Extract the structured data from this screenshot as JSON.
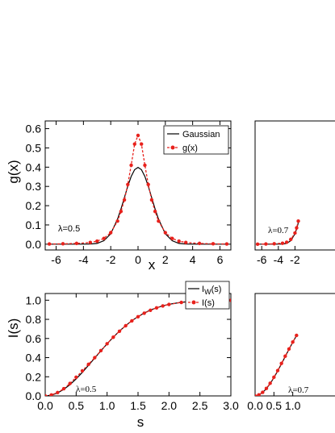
{
  "chart_data": [
    {
      "type": "line",
      "ylabel": "g(x)",
      "xlabel": "x",
      "xlim": [
        -6.8,
        6.8
      ],
      "ylim": [
        -0.03,
        0.64
      ],
      "xticks": [
        -6,
        -4,
        -2,
        0,
        2,
        4,
        6
      ],
      "xtick_labels": [
        "-6",
        "-4",
        "-2",
        "0",
        "2",
        "4",
        "6"
      ],
      "yticks": [
        0.0,
        0.1,
        0.2,
        0.3,
        0.4,
        0.5,
        0.6
      ],
      "ytick_labels": [
        "0.0",
        "0.1",
        "0.2",
        "0.3",
        "0.4",
        "0.5",
        "0.6"
      ],
      "annotation": "λ=0.5",
      "legend": "top-right",
      "series": [
        {
          "name": "Gaussian",
          "color": "#000000",
          "style": "solid",
          "x": [
            -6.5,
            -5.5,
            -4.5,
            -3.5,
            -3,
            -2.5,
            -2,
            -1.5,
            -1.25,
            -1,
            -0.75,
            -0.5,
            -0.25,
            0,
            0.25,
            0.5,
            0.75,
            1,
            1.25,
            1.5,
            2,
            2.5,
            3,
            3.5,
            4.5,
            5.5,
            6.5
          ],
          "y": [
            0,
            0,
            0,
            0.001,
            0.004,
            0.018,
            0.054,
            0.13,
            0.183,
            0.242,
            0.301,
            0.352,
            0.387,
            0.399,
            0.387,
            0.352,
            0.301,
            0.242,
            0.183,
            0.13,
            0.054,
            0.018,
            0.004,
            0.001,
            0,
            0,
            0
          ]
        },
        {
          "name": "g(x)",
          "color": "#e8211c",
          "style": "dashed-dot-marker",
          "x": [
            -6.5,
            -5.5,
            -4.5,
            -3.5,
            -3,
            -2.5,
            -2,
            -1.5,
            -1.25,
            -1,
            -0.75,
            -0.5,
            -0.25,
            0,
            0.25,
            0.5,
            0.75,
            1,
            1.25,
            1.5,
            2,
            2.5,
            3,
            3.5,
            4.5,
            5.5,
            6.5
          ],
          "y": [
            0.001,
            0.002,
            0.004,
            0.009,
            0.016,
            0.03,
            0.06,
            0.12,
            0.17,
            0.23,
            0.31,
            0.41,
            0.52,
            0.565,
            0.52,
            0.41,
            0.31,
            0.23,
            0.17,
            0.12,
            0.06,
            0.03,
            0.016,
            0.009,
            0.004,
            0.002,
            0.001
          ]
        }
      ]
    },
    {
      "type": "line",
      "ylabel": "I(s)",
      "xlabel": "s",
      "xlim": [
        0.0,
        3.0
      ],
      "ylim": [
        0.0,
        1.07
      ],
      "xticks": [
        0.0,
        0.5,
        1.0,
        1.5,
        2.0,
        2.5,
        3.0
      ],
      "xtick_labels": [
        "0.0",
        "0.5",
        "1.0",
        "1.5",
        "2.0",
        "2.5",
        "3.0"
      ],
      "yticks": [
        0.0,
        0.2,
        0.4,
        0.6,
        0.8,
        1.0
      ],
      "ytick_labels": [
        "0.0",
        "0.2",
        "0.4",
        "0.6",
        "0.8",
        "1.0"
      ],
      "annotation": "λ=0.5",
      "legend": "top-right",
      "series": [
        {
          "name": "I_W(s)",
          "color": "#000000",
          "style": "solid",
          "x": [
            0,
            0.1,
            0.2,
            0.3,
            0.4,
            0.5,
            0.6,
            0.7,
            0.8,
            0.9,
            1.0,
            1.1,
            1.2,
            1.3,
            1.4,
            1.5,
            1.6,
            1.7,
            1.8,
            1.9,
            2.0,
            2.2,
            2.4,
            2.6,
            2.8,
            3.0
          ],
          "y": [
            0,
            0.008,
            0.031,
            0.068,
            0.118,
            0.178,
            0.246,
            0.32,
            0.395,
            0.471,
            0.544,
            0.613,
            0.677,
            0.735,
            0.786,
            0.829,
            0.866,
            0.897,
            0.921,
            0.941,
            0.957,
            0.978,
            0.989,
            0.995,
            0.998,
            0.999
          ]
        },
        {
          "name": "I(s)",
          "color": "#e8211c",
          "style": "dashed-dot-marker",
          "x": [
            0,
            0.1,
            0.2,
            0.3,
            0.4,
            0.5,
            0.6,
            0.7,
            0.8,
            0.9,
            1.0,
            1.1,
            1.2,
            1.3,
            1.4,
            1.5,
            1.6,
            1.7,
            1.8,
            1.9,
            2.0,
            2.2,
            2.4,
            2.6,
            2.8,
            3.0
          ],
          "y": [
            0,
            0.01,
            0.035,
            0.075,
            0.13,
            0.195,
            0.262,
            0.33,
            0.4,
            0.473,
            0.545,
            0.613,
            0.676,
            0.733,
            0.784,
            0.827,
            0.864,
            0.895,
            0.92,
            0.94,
            0.956,
            0.977,
            0.988,
            0.994,
            0.997,
            0.999
          ]
        }
      ]
    },
    {
      "type": "line",
      "xlim": [
        -6.8,
        6.8
      ],
      "ylim": [
        -0.03,
        0.64
      ],
      "xticks": [
        -6,
        -4,
        -2
      ],
      "xtick_labels": [
        "-6",
        "-4",
        "-2"
      ],
      "annotation": "λ=0.7",
      "series": [
        {
          "name": "",
          "color": "#000000",
          "style": "solid",
          "x": [
            -6.5,
            -5.5,
            -4.5,
            -3.5,
            -3,
            -2.5,
            -2,
            -1.8,
            -1.6
          ],
          "y": [
            0,
            0,
            0,
            0.001,
            0.004,
            0.018,
            0.054,
            0.079,
            0.111
          ]
        },
        {
          "name": "",
          "color": "#e8211c",
          "style": "dashed-dot-marker",
          "x": [
            -6.5,
            -5.5,
            -4.5,
            -3.5,
            -3,
            -2.5,
            -2,
            -1.8,
            -1.6
          ],
          "y": [
            0,
            0.001,
            0.002,
            0.005,
            0.01,
            0.025,
            0.058,
            0.085,
            0.12
          ]
        }
      ]
    },
    {
      "type": "line",
      "xlim": [
        0.0,
        3.0
      ],
      "ylim": [
        0.0,
        1.07
      ],
      "xticks": [
        0.0,
        0.5,
        1.0
      ],
      "xtick_labels": [
        "0.0",
        "0.5",
        "1.0"
      ],
      "annotation": "λ=0.7",
      "series": [
        {
          "name": "",
          "color": "#000000",
          "style": "solid",
          "x": [
            0,
            0.1,
            0.2,
            0.3,
            0.4,
            0.5,
            0.6,
            0.7,
            0.8,
            0.9,
            1.0,
            1.1
          ],
          "y": [
            0,
            0.01,
            0.035,
            0.075,
            0.128,
            0.19,
            0.26,
            0.335,
            0.41,
            0.487,
            0.56,
            0.63
          ]
        },
        {
          "name": "",
          "color": "#e8211c",
          "style": "dashed-dot-marker",
          "x": [
            0,
            0.1,
            0.2,
            0.3,
            0.4,
            0.5,
            0.6,
            0.7,
            0.8,
            0.9,
            1.0,
            1.1
          ],
          "y": [
            0,
            0.011,
            0.037,
            0.078,
            0.132,
            0.195,
            0.265,
            0.34,
            0.415,
            0.49,
            0.563,
            0.632
          ]
        }
      ]
    }
  ],
  "legend_top": {
    "gaussian": "Gaussian",
    "gx": "g(x)"
  },
  "legend_bottom": {
    "iw_main": "I",
    "iw_sub": "W",
    "iw_rest": "(s)",
    "is": "I(s)"
  }
}
